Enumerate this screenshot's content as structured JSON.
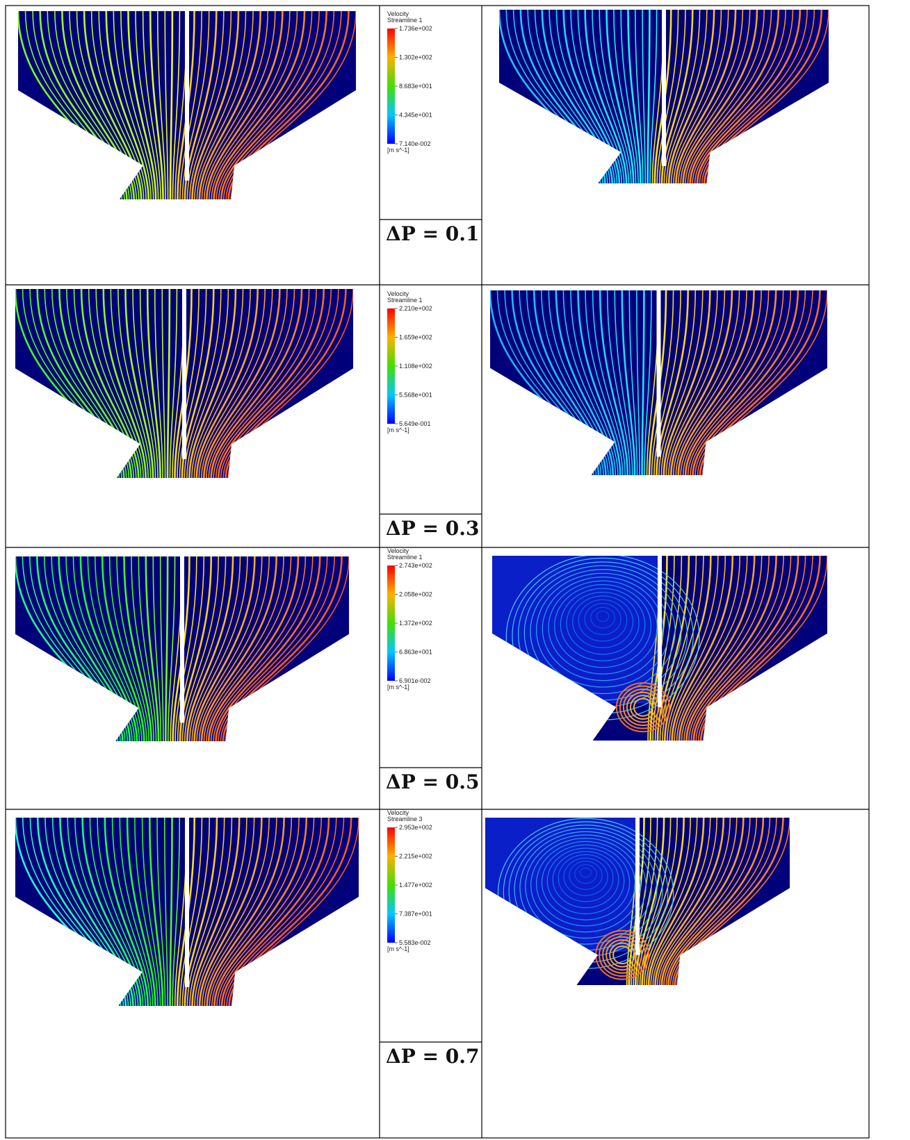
{
  "rows": [
    {
      "legend": {
        "title": "Velocity",
        "name": "Streamline 1",
        "ticks": [
          "1.736e+002",
          "1.302e+002",
          "8.683e+001",
          "4.345e+001",
          "7.140e-002"
        ],
        "unit": "[m s^-1]"
      },
      "label": "ΔP = 0.1"
    },
    {
      "legend": {
        "title": "Velocity",
        "name": "Streamline 1",
        "ticks": [
          "2.210e+002",
          "1.659e+002",
          "1.108e+002",
          "5.568e+001",
          "5.649e-001"
        ],
        "unit": "[m s^-1]"
      },
      "label": "ΔP = 0.3"
    },
    {
      "legend": {
        "title": "Velocity",
        "name": "Streamline 1",
        "ticks": [
          "2.743e+002",
          "2.058e+002",
          "1.372e+002",
          "6.863e+001",
          "6.901e-002"
        ],
        "unit": "[m s^-1]"
      },
      "label": "ΔP = 0.5"
    },
    {
      "legend": {
        "title": "Velocity",
        "name": "Streamline 3",
        "ticks": [
          "2.953e+002",
          "2.215e+002",
          "1.477e+002",
          "7.387e+001",
          "5.583e-002"
        ],
        "unit": "[m s^-1]"
      },
      "label": "ΔP = 0.7"
    }
  ]
}
